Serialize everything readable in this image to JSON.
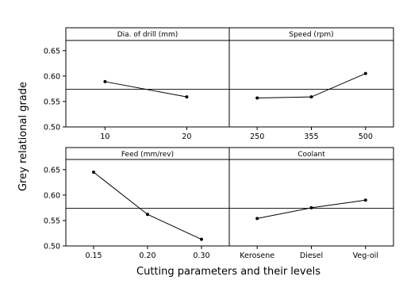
{
  "chart_data": {
    "type": "line",
    "ylabel": "Grey relational grade",
    "xlabel": "Cutting parameters and their levels",
    "y_ticks": [
      "0.50",
      "0.55",
      "0.60",
      "0.65"
    ],
    "ylim": [
      0.5,
      0.67
    ],
    "reference_mean": 0.574,
    "grid": false,
    "panels": [
      {
        "title": "Dia. of drill (mm)",
        "categories": [
          "10",
          "20"
        ],
        "values": [
          0.589,
          0.559
        ]
      },
      {
        "title": "Speed (rpm)",
        "categories": [
          "250",
          "355",
          "500"
        ],
        "values": [
          0.557,
          0.559,
          0.605
        ]
      },
      {
        "title": "Feed (mm/rev)",
        "categories": [
          "0.15",
          "0.20",
          "0.30"
        ],
        "values": [
          0.645,
          0.562,
          0.513
        ]
      },
      {
        "title": "Coolant",
        "categories": [
          "Kerosene",
          "Diesel",
          "Veg-oil"
        ],
        "values": [
          0.554,
          0.575,
          0.59
        ]
      }
    ],
    "colors": {
      "line": "#000000",
      "frame": "#000000",
      "background": "#ffffff"
    }
  }
}
